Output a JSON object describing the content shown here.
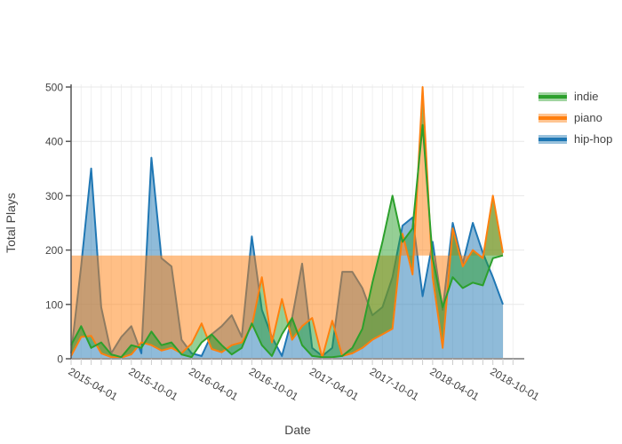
{
  "figure": {
    "background": "#ffffff",
    "text_color": "#444444",
    "grid_color_h": "#e8e8e8",
    "grid_color_v": "#f0f0f0",
    "zeroline_color": "#999999",
    "axisline_color": "#555555"
  },
  "chart_data": {
    "type": "area",
    "title": "",
    "xlabel": "Date",
    "ylabel": "Total Plays",
    "ylim": [
      0,
      500
    ],
    "yticks": [
      0,
      100,
      200,
      300,
      400,
      500
    ],
    "xticks": [
      "2015-04-01",
      "2015-10-01",
      "2016-04-01",
      "2016-10-01",
      "2017-04-01",
      "2017-10-01",
      "2018-04-01",
      "2018-10-01"
    ],
    "xtick_angle": 30,
    "grid": true,
    "legend_position": "top-right-outside",
    "x": [
      "2015-02-01",
      "2015-03-01",
      "2015-04-01",
      "2015-05-01",
      "2015-06-01",
      "2015-07-01",
      "2015-08-01",
      "2015-09-01",
      "2015-10-01",
      "2015-11-01",
      "2015-12-01",
      "2016-01-01",
      "2016-02-01",
      "2016-03-01",
      "2016-04-01",
      "2016-05-01",
      "2016-06-01",
      "2016-07-01",
      "2016-08-01",
      "2016-09-01",
      "2016-10-01",
      "2016-11-01",
      "2016-12-01",
      "2017-01-01",
      "2017-02-01",
      "2017-03-01",
      "2017-04-01",
      "2017-05-01",
      "2017-06-01",
      "2017-07-01",
      "2017-08-01",
      "2017-09-01",
      "2017-10-01",
      "2017-11-01",
      "2017-12-01",
      "2018-01-01",
      "2018-02-01",
      "2018-03-01",
      "2018-04-01",
      "2018-05-01",
      "2018-06-01",
      "2018-07-01",
      "2018-08-01",
      "2018-09-01"
    ],
    "series": [
      {
        "name": "indie",
        "color": "#2ca02c",
        "fill": "between-indie-and-piano",
        "values": [
          25,
          60,
          20,
          30,
          8,
          3,
          25,
          20,
          50,
          25,
          30,
          8,
          3,
          30,
          45,
          25,
          8,
          20,
          65,
          25,
          5,
          45,
          75,
          25,
          5,
          3,
          3,
          5,
          20,
          55,
          140,
          215,
          300,
          215,
          240,
          430,
          185,
          95,
          150,
          130,
          140,
          135,
          185,
          190
        ]
      },
      {
        "name": "piano",
        "color": "#ff7f0e",
        "fill": "between-piano-and-constant",
        "fill_to": 190,
        "values": [
          5,
          40,
          42,
          10,
          3,
          2,
          8,
          30,
          25,
          15,
          20,
          10,
          28,
          65,
          18,
          12,
          25,
          30,
          60,
          150,
          30,
          110,
          35,
          60,
          75,
          2,
          70,
          5,
          10,
          20,
          35,
          45,
          55,
          230,
          155,
          500,
          150,
          20,
          240,
          170,
          200,
          185,
          300,
          195
        ]
      },
      {
        "name": "hip-hop",
        "color": "#1f77b4",
        "fill": "tozeroy",
        "fill_to": 0,
        "values": [
          10,
          170,
          350,
          95,
          10,
          40,
          60,
          10,
          370,
          185,
          170,
          35,
          10,
          5,
          45,
          60,
          80,
          40,
          225,
          90,
          40,
          5,
          75,
          175,
          20,
          5,
          20,
          160,
          160,
          130,
          80,
          95,
          150,
          245,
          260,
          115,
          215,
          90,
          250,
          175,
          250,
          195,
          150,
          100
        ]
      }
    ]
  }
}
